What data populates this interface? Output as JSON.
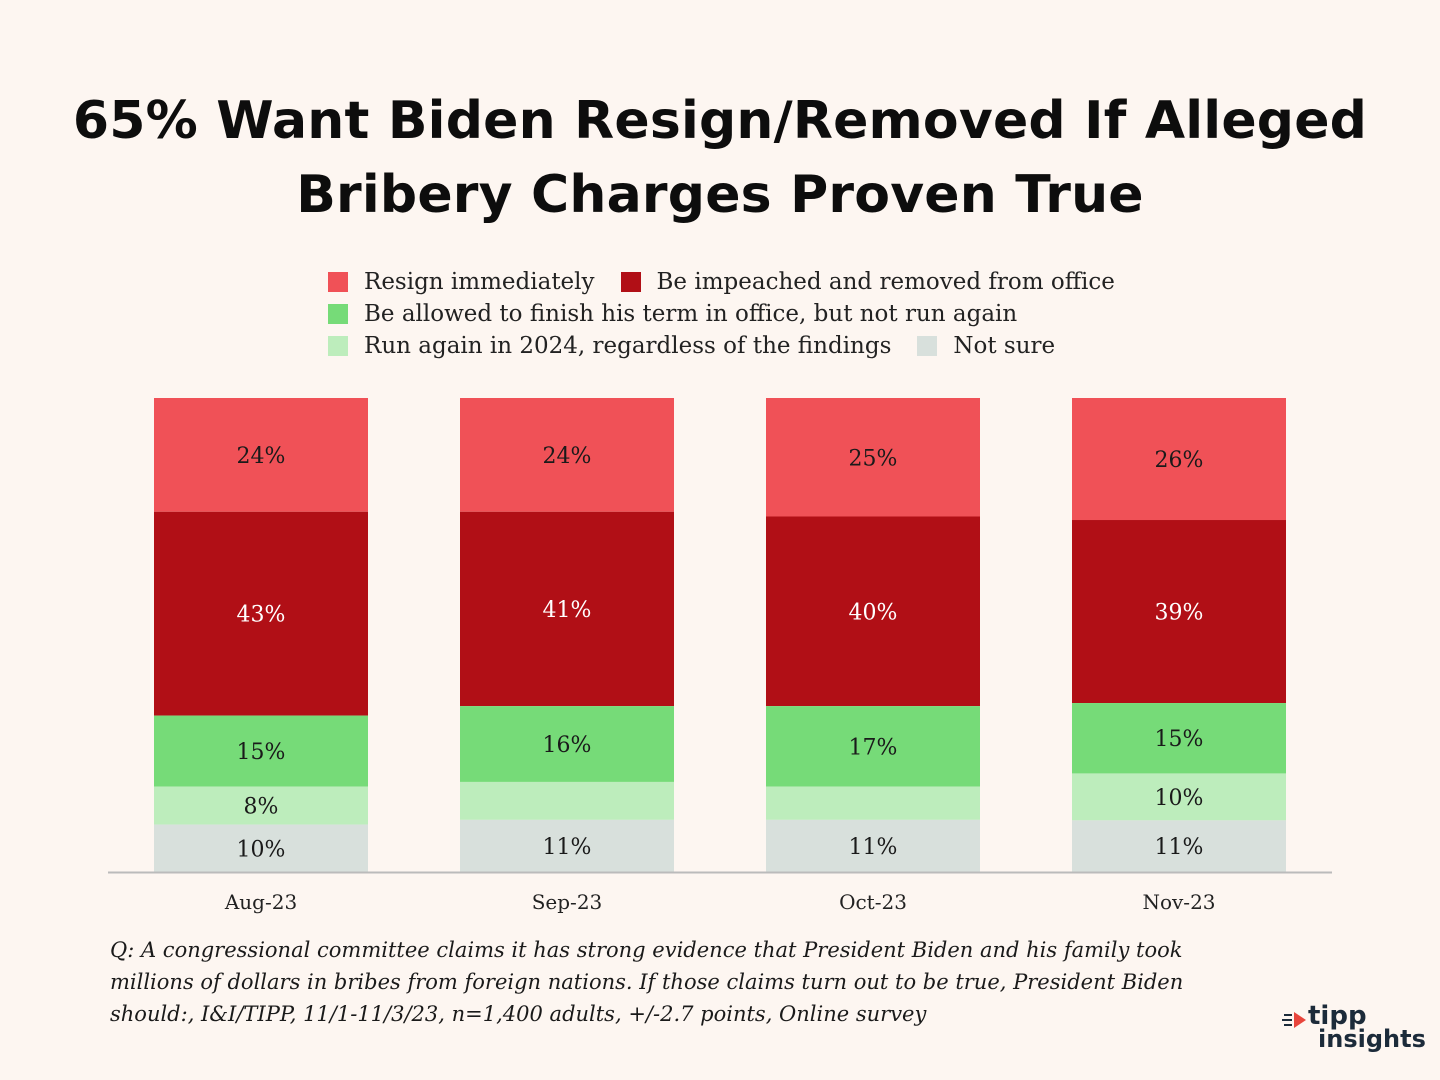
{
  "title": {
    "line1": "65% Want Biden Resign/Removed If Alleged",
    "line2": "Bribery Charges Proven True"
  },
  "colors": {
    "background": "#fdf6f1",
    "resign": "#f05157",
    "impeached": "#b10f16",
    "finish_term": "#76db78",
    "run_again": "#bdedbc",
    "not_sure": "#d8e0dc",
    "axis": "#bbbbbb"
  },
  "chart_data": {
    "type": "bar",
    "stacked": true,
    "title": "65% Want Biden Resign/Removed If Alleged Bribery Charges Proven True",
    "categories": [
      "Aug-23",
      "Sep-23",
      "Oct-23",
      "Nov-23"
    ],
    "series": [
      {
        "key": "resign",
        "name": "Resign immediately",
        "values": [
          24,
          24,
          25,
          26
        ],
        "labels": [
          "24%",
          "24%",
          "25%",
          "26%"
        ]
      },
      {
        "key": "impeached",
        "name": "Be impeached and removed from office",
        "values": [
          43,
          41,
          40,
          39
        ],
        "labels": [
          "43%",
          "41%",
          "40%",
          "39%"
        ]
      },
      {
        "key": "finish_term",
        "name": "Be allowed to finish his term in office, but not run again",
        "values": [
          15,
          16,
          17,
          15
        ],
        "labels": [
          "15%",
          "16%",
          "17%",
          "15%"
        ]
      },
      {
        "key": "run_again",
        "name": "Run again in 2024, regardless of the findings",
        "values": [
          8,
          8,
          7,
          10
        ],
        "labels": [
          "8%",
          "",
          "",
          "10%"
        ]
      },
      {
        "key": "not_sure",
        "name": "Not sure",
        "values": [
          10,
          11,
          11,
          11
        ],
        "labels": [
          "10%",
          "11%",
          "11%",
          "11%"
        ]
      }
    ],
    "ylim": [
      0,
      100
    ],
    "xlabel": "",
    "ylabel": "",
    "legend": "top-center",
    "grid": false
  },
  "legend": {
    "resign": "Resign immediately",
    "impeached": "Be impeached and removed from office",
    "finish_term": "Be allowed to finish his term in office, but not run again",
    "run_again": "Run again in 2024, regardless of the findings",
    "not_sure": "Not sure"
  },
  "footnote": {
    "line1": "Q: A congressional committee claims it has strong evidence that President Biden and his family took",
    "line2": "millions of dollars in bribes from foreign nations. If those claims turn out to be true, President Biden",
    "line3": "should:, I&I/TIPP, 11/1-11/3/23, n=1,400 adults, +/-2.7 points,  Online survey"
  },
  "logo": {
    "word1": "tipp",
    "word2": "insights"
  }
}
